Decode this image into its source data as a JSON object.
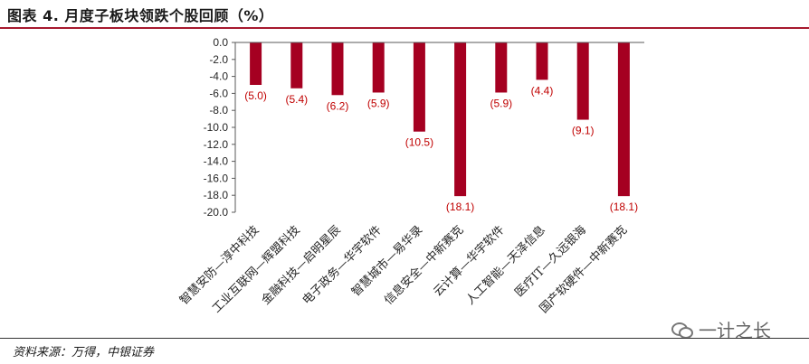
{
  "title": "图表 4. 月度子板块领跌个股回顾（%）",
  "source": "资料来源：万得，中银证券",
  "watermark": "一计之长",
  "colors": {
    "bar": "#a50021",
    "label": "#c00000",
    "title_rule": "#a6192e"
  },
  "chart_data": {
    "type": "bar",
    "categories": [
      "智慧安防—淳中科技",
      "工业互联网—辉盟科技",
      "金融科技—启明星辰",
      "电子政务—华宇软件",
      "智慧城市—易华录",
      "信息安全—中新赛克",
      "云计算—华宇软件",
      "人工智能—天泽信息",
      "医疗IT—久远银海",
      "国产软硬件—中新赛克"
    ],
    "values": [
      -5.0,
      -5.4,
      -6.2,
      -5.9,
      -10.5,
      -18.1,
      -5.9,
      -4.4,
      -9.1,
      -18.1
    ],
    "data_labels": [
      "(5.0)",
      "(5.4)",
      "(6.2)",
      "(5.9)",
      "(10.5)",
      "(18.1)",
      "(5.9)",
      "(4.4)",
      "(9.1)",
      "(18.1)"
    ],
    "yticks": [
      "0.0",
      "-2.0",
      "-4.0",
      "-6.0",
      "-8.0",
      "-10.0",
      "-12.0",
      "-14.0",
      "-16.0",
      "-18.0",
      "-20.0"
    ],
    "ylim": [
      -20,
      0
    ],
    "xlabel": "",
    "ylabel": "",
    "grid": false,
    "legend": "none"
  }
}
